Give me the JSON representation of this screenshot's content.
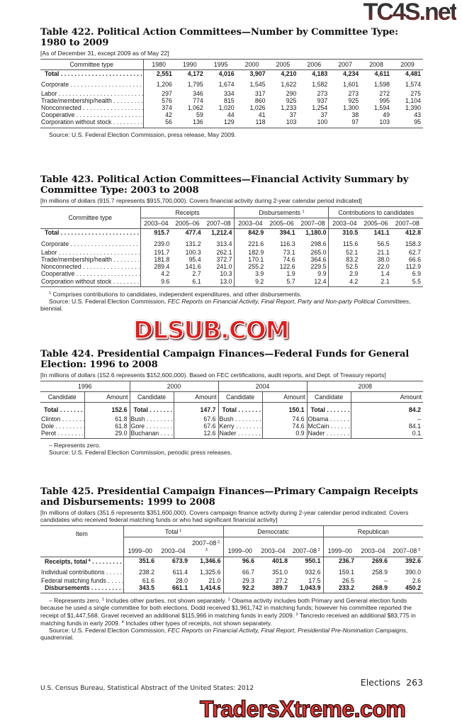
{
  "t422": {
    "title": "Table 422. Political Action Committees—Number by Committee Type: 1980 to 2009",
    "headnote": "[As of December 31, except 2009 as of May 22]",
    "stub_header": "Committee type",
    "columns": [
      "1980",
      "1990",
      "1995",
      "2000",
      "2005",
      "2006",
      "2007",
      "2008",
      "2009"
    ],
    "rows": [
      {
        "label": "Total",
        "bold": true,
        "values": [
          "2,551",
          "4,172",
          "4,016",
          "3,907",
          "4,210",
          "4,183",
          "4,234",
          "4,611",
          "4,481"
        ]
      },
      {
        "label": "Corporate",
        "gap": true,
        "values": [
          "1,206",
          "1,795",
          "1,674",
          "1,545",
          "1,622",
          "1,582",
          "1,601",
          "1,598",
          "1,574"
        ]
      },
      {
        "label": "Labor",
        "values": [
          "297",
          "346",
          "334",
          "317",
          "290",
          "273",
          "273",
          "272",
          "275"
        ]
      },
      {
        "label": "Trade/membership/health",
        "values": [
          "576",
          "774",
          "815",
          "860",
          "925",
          "937",
          "925",
          "995",
          "1,104"
        ]
      },
      {
        "label": "Nonconnected",
        "values": [
          "374",
          "1,062",
          "1,020",
          "1,026",
          "1,233",
          "1,254",
          "1,300",
          "1,594",
          "1,390"
        ]
      },
      {
        "label": "Cooperative",
        "values": [
          "42",
          "59",
          "44",
          "41",
          "37",
          "37",
          "38",
          "49",
          "43"
        ]
      },
      {
        "label": "Corporation without stock",
        "values": [
          "56",
          "136",
          "129",
          "118",
          "103",
          "100",
          "97",
          "103",
          "95"
        ]
      }
    ],
    "source": "Source: U.S. Federal Election Commission, press release, May 2009."
  },
  "t423": {
    "title": "Table 423. Political Action Committees—Financial Activity Summary by Committee Type: 2003 to 2008",
    "headnote": "[In millions of dollars (915.7 represents $915,700,000). Covers financial activity during 2-year calendar period indicated]",
    "stub_header": "Committee type",
    "groups": [
      "Receipts",
      "Disbursements",
      "Contributions to candidates"
    ],
    "group_note": "1",
    "columns": [
      "2003–04",
      "2005–06",
      "2007–08",
      "2003–04",
      "2005–06",
      "2007–08",
      "2003–04",
      "2005–06",
      "2007–08"
    ],
    "rows": [
      {
        "label": "Total",
        "bold": true,
        "values": [
          "915.7",
          "477.4",
          "1,212.4",
          "842.9",
          "394.1",
          "1,180.0",
          "310.5",
          "141.1",
          "412.8"
        ]
      },
      {
        "label": "Corporate",
        "gap": true,
        "values": [
          "239.0",
          "131.2",
          "313.4",
          "221.6",
          "116.3",
          "298.6",
          "115.6",
          "56.5",
          "158.3"
        ]
      },
      {
        "label": "Labor",
        "values": [
          "191.7",
          "100.3",
          "262.1",
          "182.9",
          "73.1",
          "265.0",
          "52.1",
          "21.1",
          "62.7"
        ]
      },
      {
        "label": "Trade/membership/health",
        "values": [
          "181.8",
          "95.4",
          "372.7",
          "170.1",
          "74.6",
          "364.6",
          "83.2",
          "38.0",
          "66.6"
        ]
      },
      {
        "label": "Nonconnected",
        "values": [
          "289.4",
          "141.6",
          "241.0",
          "255.2",
          "122.6",
          "229.5",
          "52.5",
          "22.0",
          "112.9"
        ]
      },
      {
        "label": "Cooperative",
        "values": [
          "4.2",
          "2.7",
          "10.3",
          "3.9",
          "1.9",
          "9.9",
          "2.9",
          "1.4",
          "6.9"
        ]
      },
      {
        "label": "Corporation without stock",
        "values": [
          "9.6",
          "6.1",
          "13.0",
          "9.2",
          "5.7",
          "12.4",
          "4.2",
          "2.1",
          "5.5"
        ]
      }
    ],
    "footnote_1": "Comprises contributions to candidates, independent expenditures, and other disbursements.",
    "source_prefix": "Source: U.S. Federal Election Commission, ",
    "source_italic": "FEC Reports on Financial Activity, Final Report, Party and Non-party Political Committees",
    "source_suffix": ", biennial."
  },
  "t424": {
    "title": "Table 424. Presidential Campaign Finances—Federal Funds for General Election: 1996 to 2008",
    "headnote": "[In millions of dollars (152.6 represents $152,600,000). Based on FEC certifications, audit reports, and Dept. of Treasury reports]",
    "years": [
      "1996",
      "2000",
      "2004",
      "2008"
    ],
    "candidate_header": "Candidate",
    "amount_header": "Amount",
    "rows": [
      {
        "bold": true,
        "cells": [
          [
            "Total",
            "152.6"
          ],
          [
            "Total",
            "147.7"
          ],
          [
            "Total",
            "150.1"
          ],
          [
            "Total",
            "84.2"
          ]
        ]
      },
      {
        "cells": [
          [
            "Clinton",
            "61.8"
          ],
          [
            "Bush",
            "67.6"
          ],
          [
            "Bush",
            "74.6"
          ],
          [
            "Obama",
            "–"
          ]
        ]
      },
      {
        "cells": [
          [
            "Dole",
            "61.8"
          ],
          [
            "Gore",
            "67.6"
          ],
          [
            "Kerry",
            "74.6"
          ],
          [
            "McCain",
            "84.1"
          ]
        ]
      },
      {
        "cells": [
          [
            "Perot",
            "29.0"
          ],
          [
            "Buchanan",
            "12.6"
          ],
          [
            "Nader",
            "0.9"
          ],
          [
            "Nader",
            "0.1"
          ]
        ]
      }
    ],
    "zero_note": "– Represents zero.",
    "source": "Source: U.S. Federal Election Commission, periodic press releases."
  },
  "t425": {
    "title": "Table 425. Presidential Campaign Finances—Primary Campaign Receipts and Disbursements: 1999 to 2008",
    "headnote": "[In millions of dollars (351.6 represents $351,600,000). Covers campaign finance activity during 2-year calendar period indicated. Covers candidates who received federal matching funds or who had significant financial activity]",
    "stub_header": "Item",
    "groups": [
      {
        "label": "Total",
        "note": "1"
      },
      {
        "label": "Democratic",
        "note": ""
      },
      {
        "label": "Republican",
        "note": ""
      }
    ],
    "columns": [
      {
        "label": "1999–00",
        "note": ""
      },
      {
        "label": "2003–04",
        "note": ""
      },
      {
        "label": "2007–08",
        "note": "2, 3"
      },
      {
        "label": "1999–00",
        "note": ""
      },
      {
        "label": "2003–04",
        "note": ""
      },
      {
        "label": "2007–08",
        "note": "2"
      },
      {
        "label": "1999–00",
        "note": ""
      },
      {
        "label": "2003–04",
        "note": ""
      },
      {
        "label": "2007–08",
        "note": "3"
      }
    ],
    "rows": [
      {
        "label": "Receipts, total",
        "note": "4",
        "bold": true,
        "values": [
          "351.6",
          "673.9",
          "1,346.6",
          "96.6",
          "401.8",
          "950.1",
          "236.7",
          "269.6",
          "392.6"
        ]
      },
      {
        "label": "Individual contributions",
        "gap": true,
        "values": [
          "238.2",
          "611.4",
          "1,325.6",
          "66.7",
          "351.0",
          "932.6",
          "159.1",
          "258.9",
          "390.0"
        ]
      },
      {
        "label": "Federal matching funds",
        "values": [
          "61.6",
          "28.0",
          "21.0",
          "29.3",
          "27.2",
          "17.5",
          "26.5",
          "–",
          "2.6"
        ]
      },
      {
        "label": "Disbursements",
        "bold": true,
        "values": [
          "343.5",
          "661.1",
          "1,414.6",
          "92.2",
          "389.7",
          "1,043.9",
          "233.2",
          "268.9",
          "450.2"
        ]
      }
    ],
    "footnotes": [
      {
        "mark": "",
        "text": "– Represents zero. "
      },
      {
        "mark": "1",
        "text": " Includes other parties, not shown separately. "
      },
      {
        "mark": "2",
        "text": " Obama activity includes both Primary and General election funds because he used a single committee for both elections. Dodd received $1,961,742 in matching funds; however his committee reported the receipt of $1,447,568. Gravel received an additional $115,966 in matching funds in early 2009. "
      },
      {
        "mark": "3",
        "text": " Tancredo received an additional $83,775 in matching funds in early 2009. "
      },
      {
        "mark": "4",
        "text": " Includes other types of receipts, not shown separately."
      }
    ],
    "source_prefix": "Source: U.S. Federal Election Commission, ",
    "source_italic": "FEC Reports on Financial Activity, Final Report, Presidential Pre-Nomination Campaigns",
    "source_suffix": ", quadrennial."
  },
  "footer": {
    "section": "Elections",
    "page": "263",
    "publication": "U.S. Census Bureau, Statistical Abstract of the United States: 2012"
  },
  "watermarks": [
    "TC4S.net",
    "DLSUB.COM",
    "TradersXtreme.com"
  ]
}
